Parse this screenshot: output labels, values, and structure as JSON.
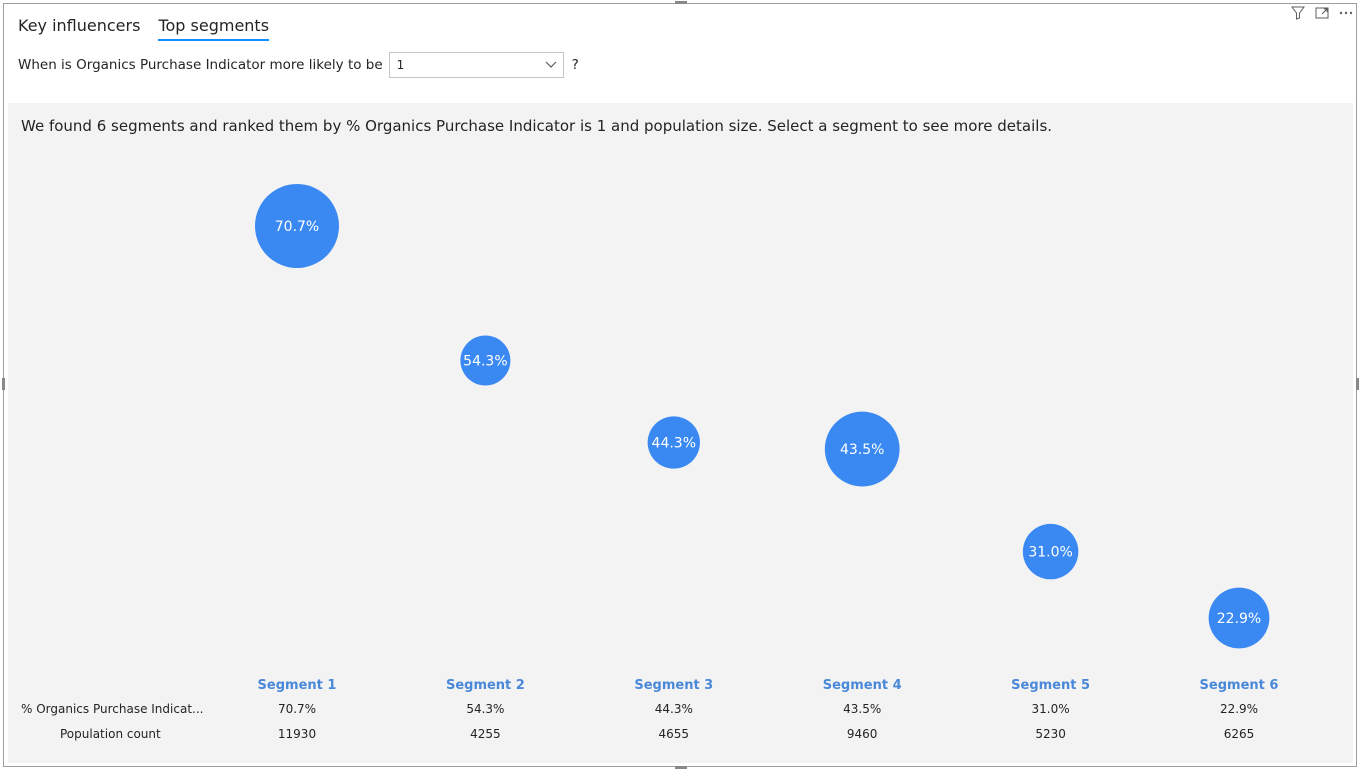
{
  "tabs": [
    {
      "label": "Key influencers",
      "active": false
    },
    {
      "label": "Top segments",
      "active": true
    }
  ],
  "header_icons": [
    "filter-icon",
    "focus-mode-icon",
    "more-options-icon"
  ],
  "question": {
    "prefix": "When is Organics Purchase Indicator more likely to be",
    "selected_value": "1",
    "suffix": "?"
  },
  "summary": "We found 6 segments and ranked them by % Organics Purchase Indicator is 1 and population size. Select a segment to see more details.",
  "colors": {
    "bubble": "#3a89f3",
    "accent": "#118dff",
    "segment_title": "#4a88d9",
    "panel": "#f3f3f3"
  },
  "table": {
    "row_labels": [
      "% Organics Purchase Indicat...",
      "Population count"
    ]
  },
  "chart_data": {
    "type": "scatter",
    "categories": [
      "Segment 1",
      "Segment 2",
      "Segment 3",
      "Segment 4",
      "Segment 5",
      "Segment 6"
    ],
    "values": [
      70.7,
      54.3,
      44.3,
      43.5,
      31.0,
      22.9
    ],
    "value_labels": [
      "70.7%",
      "54.3%",
      "44.3%",
      "43.5%",
      "31.0%",
      "22.9%"
    ],
    "population": [
      11930,
      4255,
      4655,
      9460,
      5230,
      6265
    ],
    "ylim": [
      22.9,
      70.7
    ]
  }
}
